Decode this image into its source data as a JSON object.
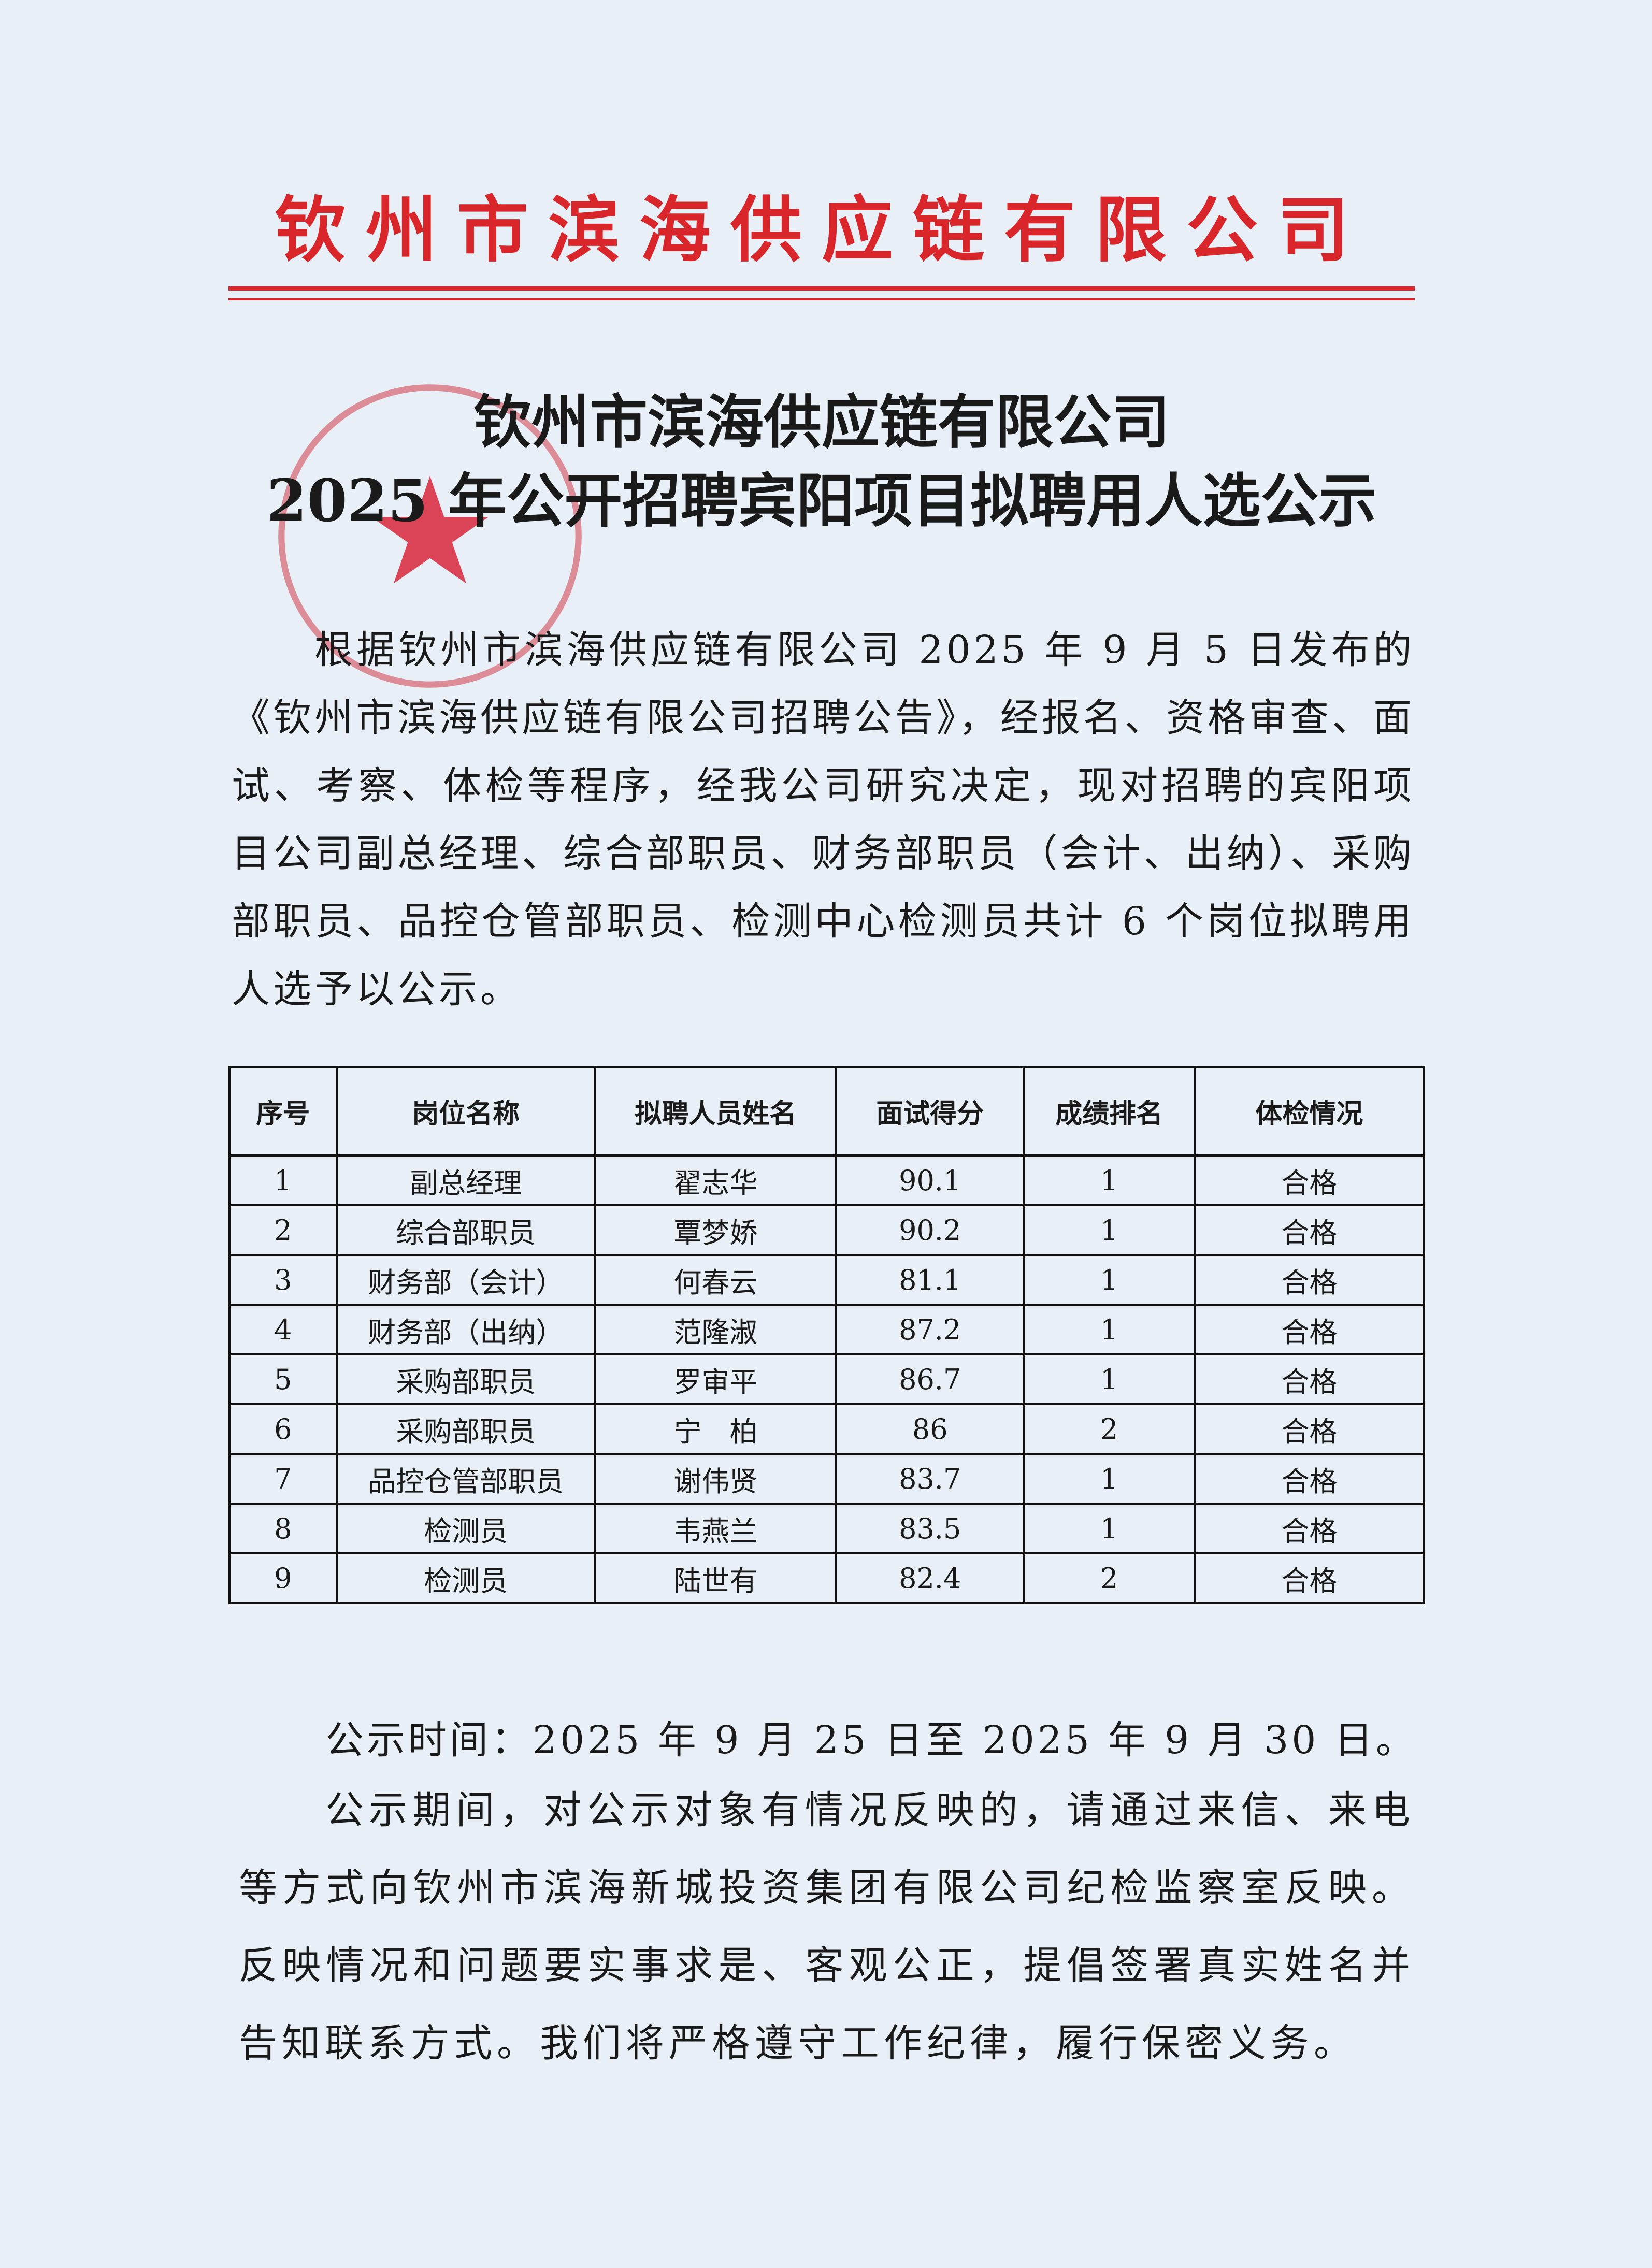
{
  "letterhead": {
    "company": "钦州市滨海供应链有限公司",
    "color": "#d8262a"
  },
  "title": {
    "line1": "钦州市滨海供应链有限公司",
    "line2": "2025 年公开招聘宾阳项目拟聘用人选公示"
  },
  "stamp": {
    "color": "#d23a48"
  },
  "body": {
    "paragraph": "根据钦州市滨海供应链有限公司 2025 年 9 月 5 日发布的《钦州市滨海供应链有限公司招聘公告》，经报名、资格审查、面试、考察、体检等程序，经我公司研究决定，现对招聘的宾阳项目公司副总经理、综合部职员、财务部职员（会计、出纳）、采购部职员、品控仓管部职员、检测中心检测员共计 6 个岗位拟聘用人选予以公示。"
  },
  "table": {
    "headers": [
      "序号",
      "岗位名称",
      "拟聘人员姓名",
      "面试得分",
      "成绩排名",
      "体检情况"
    ],
    "rows": [
      [
        "1",
        "副总经理",
        "翟志华",
        "90.1",
        "1",
        "合格"
      ],
      [
        "2",
        "综合部职员",
        "覃梦娇",
        "90.2",
        "1",
        "合格"
      ],
      [
        "3",
        "财务部（会计）",
        "何春云",
        "81.1",
        "1",
        "合格"
      ],
      [
        "4",
        "财务部（出纳）",
        "范隆淑",
        "87.2",
        "1",
        "合格"
      ],
      [
        "5",
        "采购部职员",
        "罗审平",
        "86.7",
        "1",
        "合格"
      ],
      [
        "6",
        "采购部职员",
        "宁　柏",
        "86",
        "2",
        "合格"
      ],
      [
        "7",
        "品控仓管部职员",
        "谢伟贤",
        "83.7",
        "1",
        "合格"
      ],
      [
        "8",
        "检测员",
        "韦燕兰",
        "83.5",
        "1",
        "合格"
      ],
      [
        "9",
        "检测员",
        "陆世有",
        "82.4",
        "2",
        "合格"
      ]
    ]
  },
  "period": "公示时间：2025 年 9 月 25 日至 2025 年 9 月 30 日。",
  "notice": "公示期间，对公示对象有情况反映的，请通过来信、来电等方式向钦州市滨海新城投资集团有限公司纪检监察室反映。反映情况和问题要实事求是、客观公正，提倡签署真实姓名并告知联系方式。我们将严格遵守工作纪律，履行保密义务。"
}
